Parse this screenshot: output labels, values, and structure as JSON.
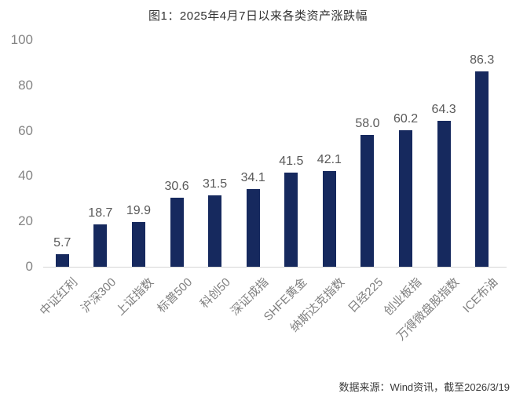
{
  "title": "图1：2025年4月7日以来各类资产涨跌幅",
  "source_note": "数据来源：Wind资讯，截至2026/3/19",
  "colors": {
    "bar": "#16295E",
    "axis_line": "#d6d6d6",
    "title_text": "#333333",
    "y_tick_label": "#848484",
    "value_label": "#595959",
    "x_tick_label": "#7f7f7f",
    "source_text": "#3a3a3a",
    "background": "#ffffff"
  },
  "chart_data": {
    "type": "bar",
    "title": "图1：2025年4月7日以来各类资产涨跌幅",
    "categories": [
      "中证红利",
      "沪深300",
      "上证指数",
      "标普500",
      "科创50",
      "深证成指",
      "SHFE黄金",
      "纳斯达克指数",
      "日经225",
      "创业板指",
      "万得微盘股指数",
      "ICE布油"
    ],
    "values": [
      5.7,
      18.7,
      19.9,
      30.6,
      31.5,
      34.1,
      41.5,
      42.1,
      58.0,
      60.2,
      64.3,
      86.3
    ],
    "value_labels": [
      "5.7",
      "18.7",
      "19.9",
      "30.6",
      "31.5",
      "34.1",
      "41.5",
      "42.1",
      "58.0",
      "60.2",
      "64.3",
      "86.3"
    ],
    "xlabel": "",
    "ylabel": "",
    "ylim": [
      0,
      100
    ],
    "yticks": [
      0,
      20,
      40,
      60,
      80,
      100
    ],
    "grid": false,
    "legend": "none",
    "x_label_rotation_deg": 45
  }
}
